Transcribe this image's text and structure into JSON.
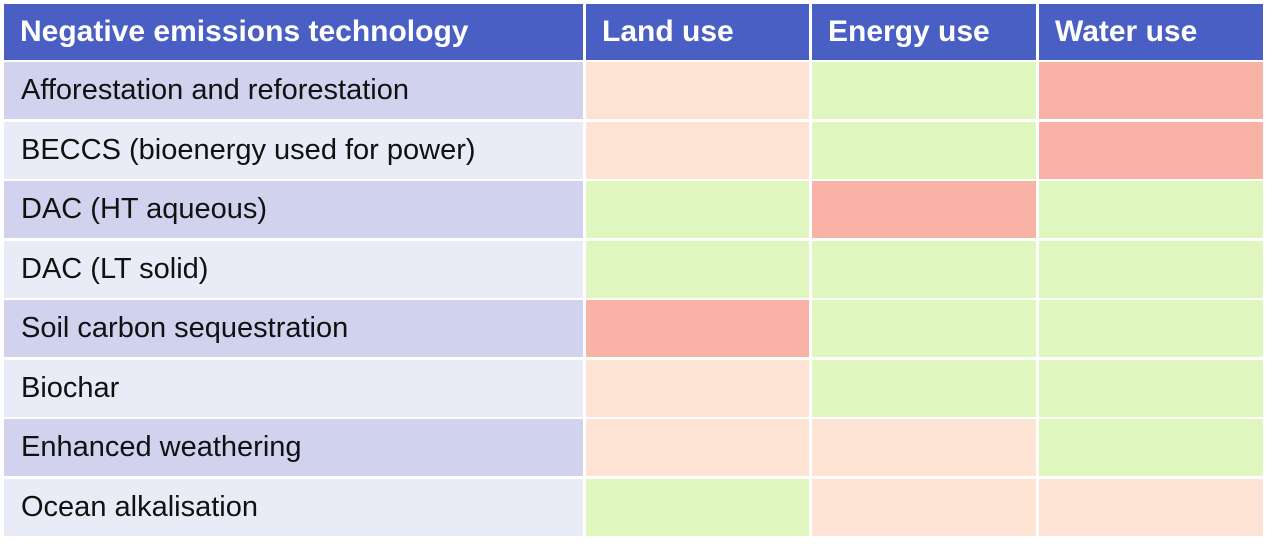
{
  "table": {
    "header": [
      "Negative emissions technology",
      "Land use",
      "Energy use",
      "Water use"
    ],
    "rows": [
      {
        "label": "Afforestation and reforestation",
        "colors": [
          "#fde3d3",
          "#dff7be",
          "#f8b3a6"
        ]
      },
      {
        "label": "BECCS (bioenergy used for power)",
        "colors": [
          "#fde3d3",
          "#dff7be",
          "#f8b3a6"
        ]
      },
      {
        "label": "DAC (HT aqueous)",
        "colors": [
          "#dff7be",
          "#f8b3a6",
          "#dff7be"
        ]
      },
      {
        "label": "DAC (LT solid)",
        "colors": [
          "#dff7be",
          "#dff7be",
          "#dff7be"
        ]
      },
      {
        "label": "Soil carbon sequestration",
        "colors": [
          "#f8b3a6",
          "#dff7be",
          "#dff7be"
        ]
      },
      {
        "label": "Biochar",
        "colors": [
          "#fde3d3",
          "#dff7be",
          "#dff7be"
        ]
      },
      {
        "label": "Enhanced weathering",
        "colors": [
          "#fde3d3",
          "#fde3d3",
          "#dff7be"
        ]
      },
      {
        "label": "Ocean alkalisation",
        "colors": [
          "#dff7be",
          "#fde3d3",
          "#fde3d3"
        ]
      }
    ],
    "label_colors": [
      "#d1d3ee",
      "#e9ebf6"
    ]
  }
}
